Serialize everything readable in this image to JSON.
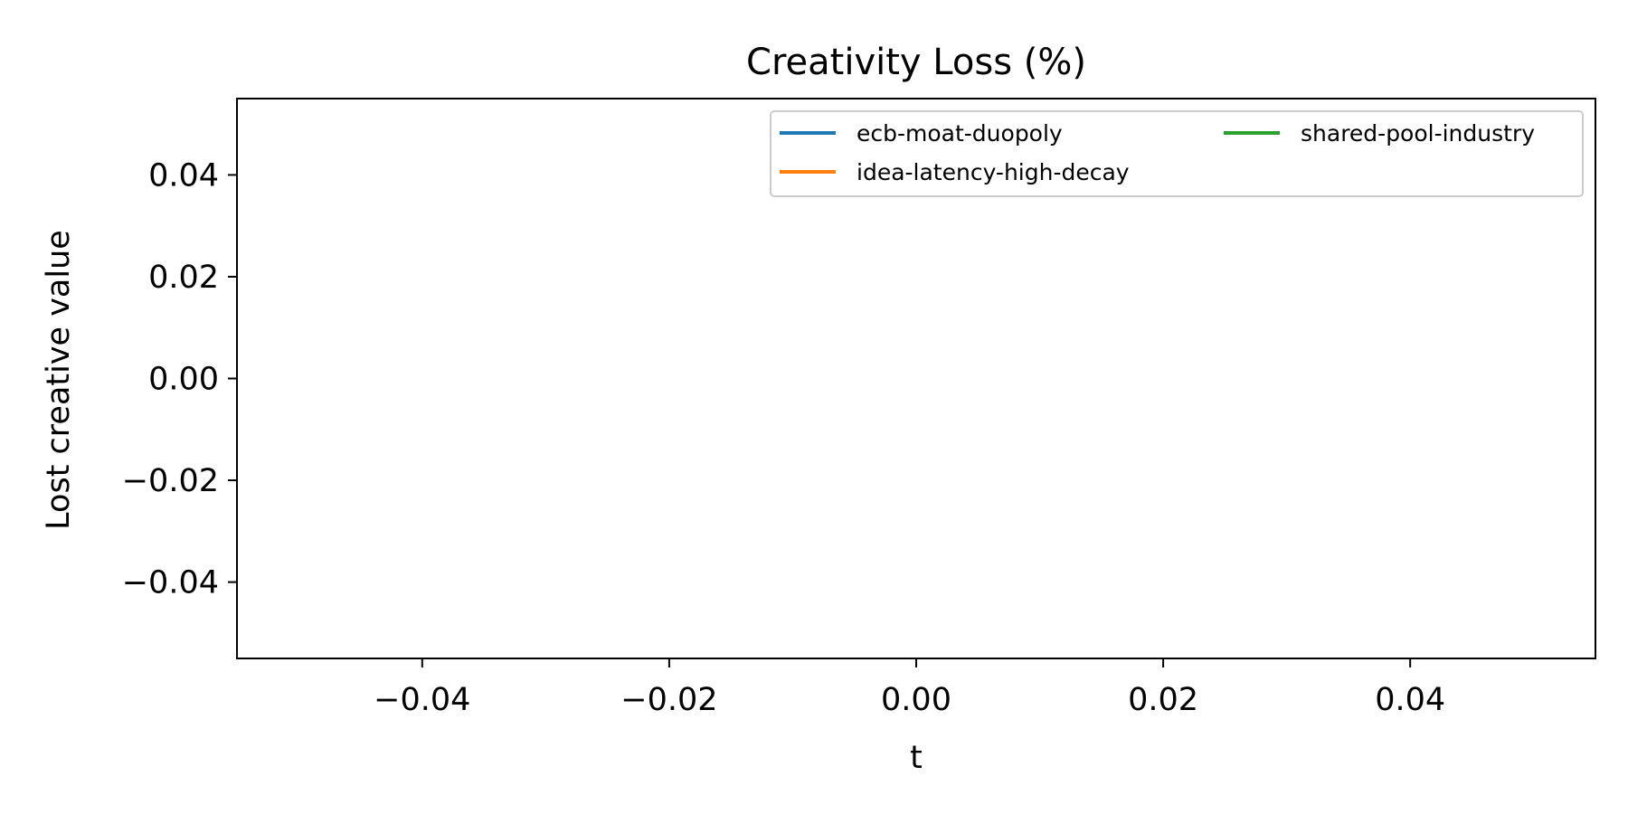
{
  "chart_data": {
    "type": "line",
    "title": "Creativity Loss (%)",
    "xlabel": "t",
    "ylabel": "Lost creative value",
    "xlim": [
      -0.055,
      0.055
    ],
    "ylim": [
      -0.055,
      0.055
    ],
    "x_ticks": [
      -0.04,
      -0.02,
      0.0,
      0.02,
      0.04
    ],
    "y_ticks": [
      -0.04,
      -0.02,
      0.0,
      0.02,
      0.04
    ],
    "x_tick_labels": [
      "−0.04",
      "−0.02",
      "0.00",
      "0.02",
      "0.04"
    ],
    "y_tick_labels": [
      "−0.04",
      "−0.02",
      "0.00",
      "0.02",
      "0.04"
    ],
    "grid": false,
    "legend_position": "top-right",
    "legend_columns": 2,
    "series": [
      {
        "name": "ecb-moat-duopoly",
        "color": "#1f77b4",
        "x": [],
        "y": []
      },
      {
        "name": "idea-latency-high-decay",
        "color": "#ff7f0e",
        "x": [],
        "y": []
      },
      {
        "name": "shared-pool-industry",
        "color": "#2ca02c",
        "x": [],
        "y": []
      }
    ]
  }
}
